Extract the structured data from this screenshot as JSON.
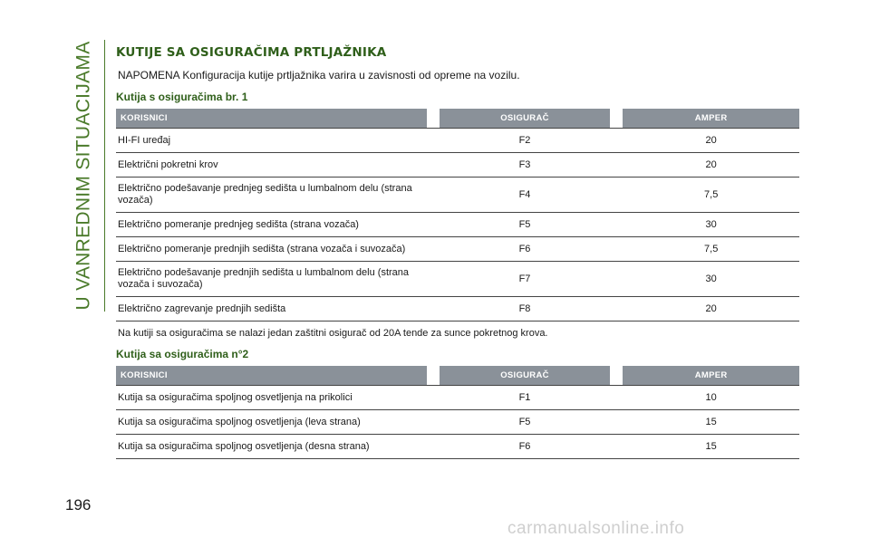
{
  "sidebar": {
    "chapter_title": "U VANREDNIM SITUACIJAMA"
  },
  "page_number": "196",
  "section_heading": "KUTIJE SA OSIGURAČIMA PRTLJAŽNIKA",
  "note": "NAPOMENA Konfiguracija kutije prtljažnika varira u zavisnosti od opreme na vozilu.",
  "table1": {
    "title": "Kutija s osiguračima br. 1",
    "headers": {
      "users": "KORISNICI",
      "fuse": "OSIGURAČ",
      "amp": "AMPER"
    },
    "rows": [
      {
        "user": "HI-FI uređaj",
        "fuse": "F2",
        "amp": "20"
      },
      {
        "user": "Električni pokretni krov",
        "fuse": "F3",
        "amp": "20"
      },
      {
        "user": "Električno podešavanje prednjeg sedišta u lumbalnom delu (strana vozača)",
        "fuse": "F4",
        "amp": "7,5"
      },
      {
        "user": "Električno pomeranje prednjeg sedišta (strana vozača)",
        "fuse": "F5",
        "amp": "30"
      },
      {
        "user": "Električno pomeranje prednjih sedišta (strana vozača i suvozača)",
        "fuse": "F6",
        "amp": "7,5"
      },
      {
        "user": "Električno podešavanje prednjih sedišta u lumbalnom delu (strana vozača i suvozača)",
        "fuse": "F7",
        "amp": "30"
      },
      {
        "user": "Električno zagrevanje prednjih sedišta",
        "fuse": "F8",
        "amp": "20"
      }
    ],
    "footnote": "Na kutiji sa osiguračima se nalazi jedan zaštitni osigurač od 20A tende za sunce pokretnog krova."
  },
  "table2": {
    "title": "Kutija sa osiguračima n°2",
    "headers": {
      "users": "KORISNICI",
      "fuse": "OSIGURAČ",
      "amp": "AMPER"
    },
    "rows": [
      {
        "user": "Kutija sa osiguračima spoljnog osvetljenja na prikolici",
        "fuse": "F1",
        "amp": "10"
      },
      {
        "user": "Kutija sa osiguračima spoljnog osvetljenja (leva strana)",
        "fuse": "F5",
        "amp": "15"
      },
      {
        "user": "Kutija sa osiguračima spoljnog osvetljenja (desna strana)",
        "fuse": "F6",
        "amp": "15"
      }
    ]
  },
  "watermark": "carmanualsonline.info"
}
